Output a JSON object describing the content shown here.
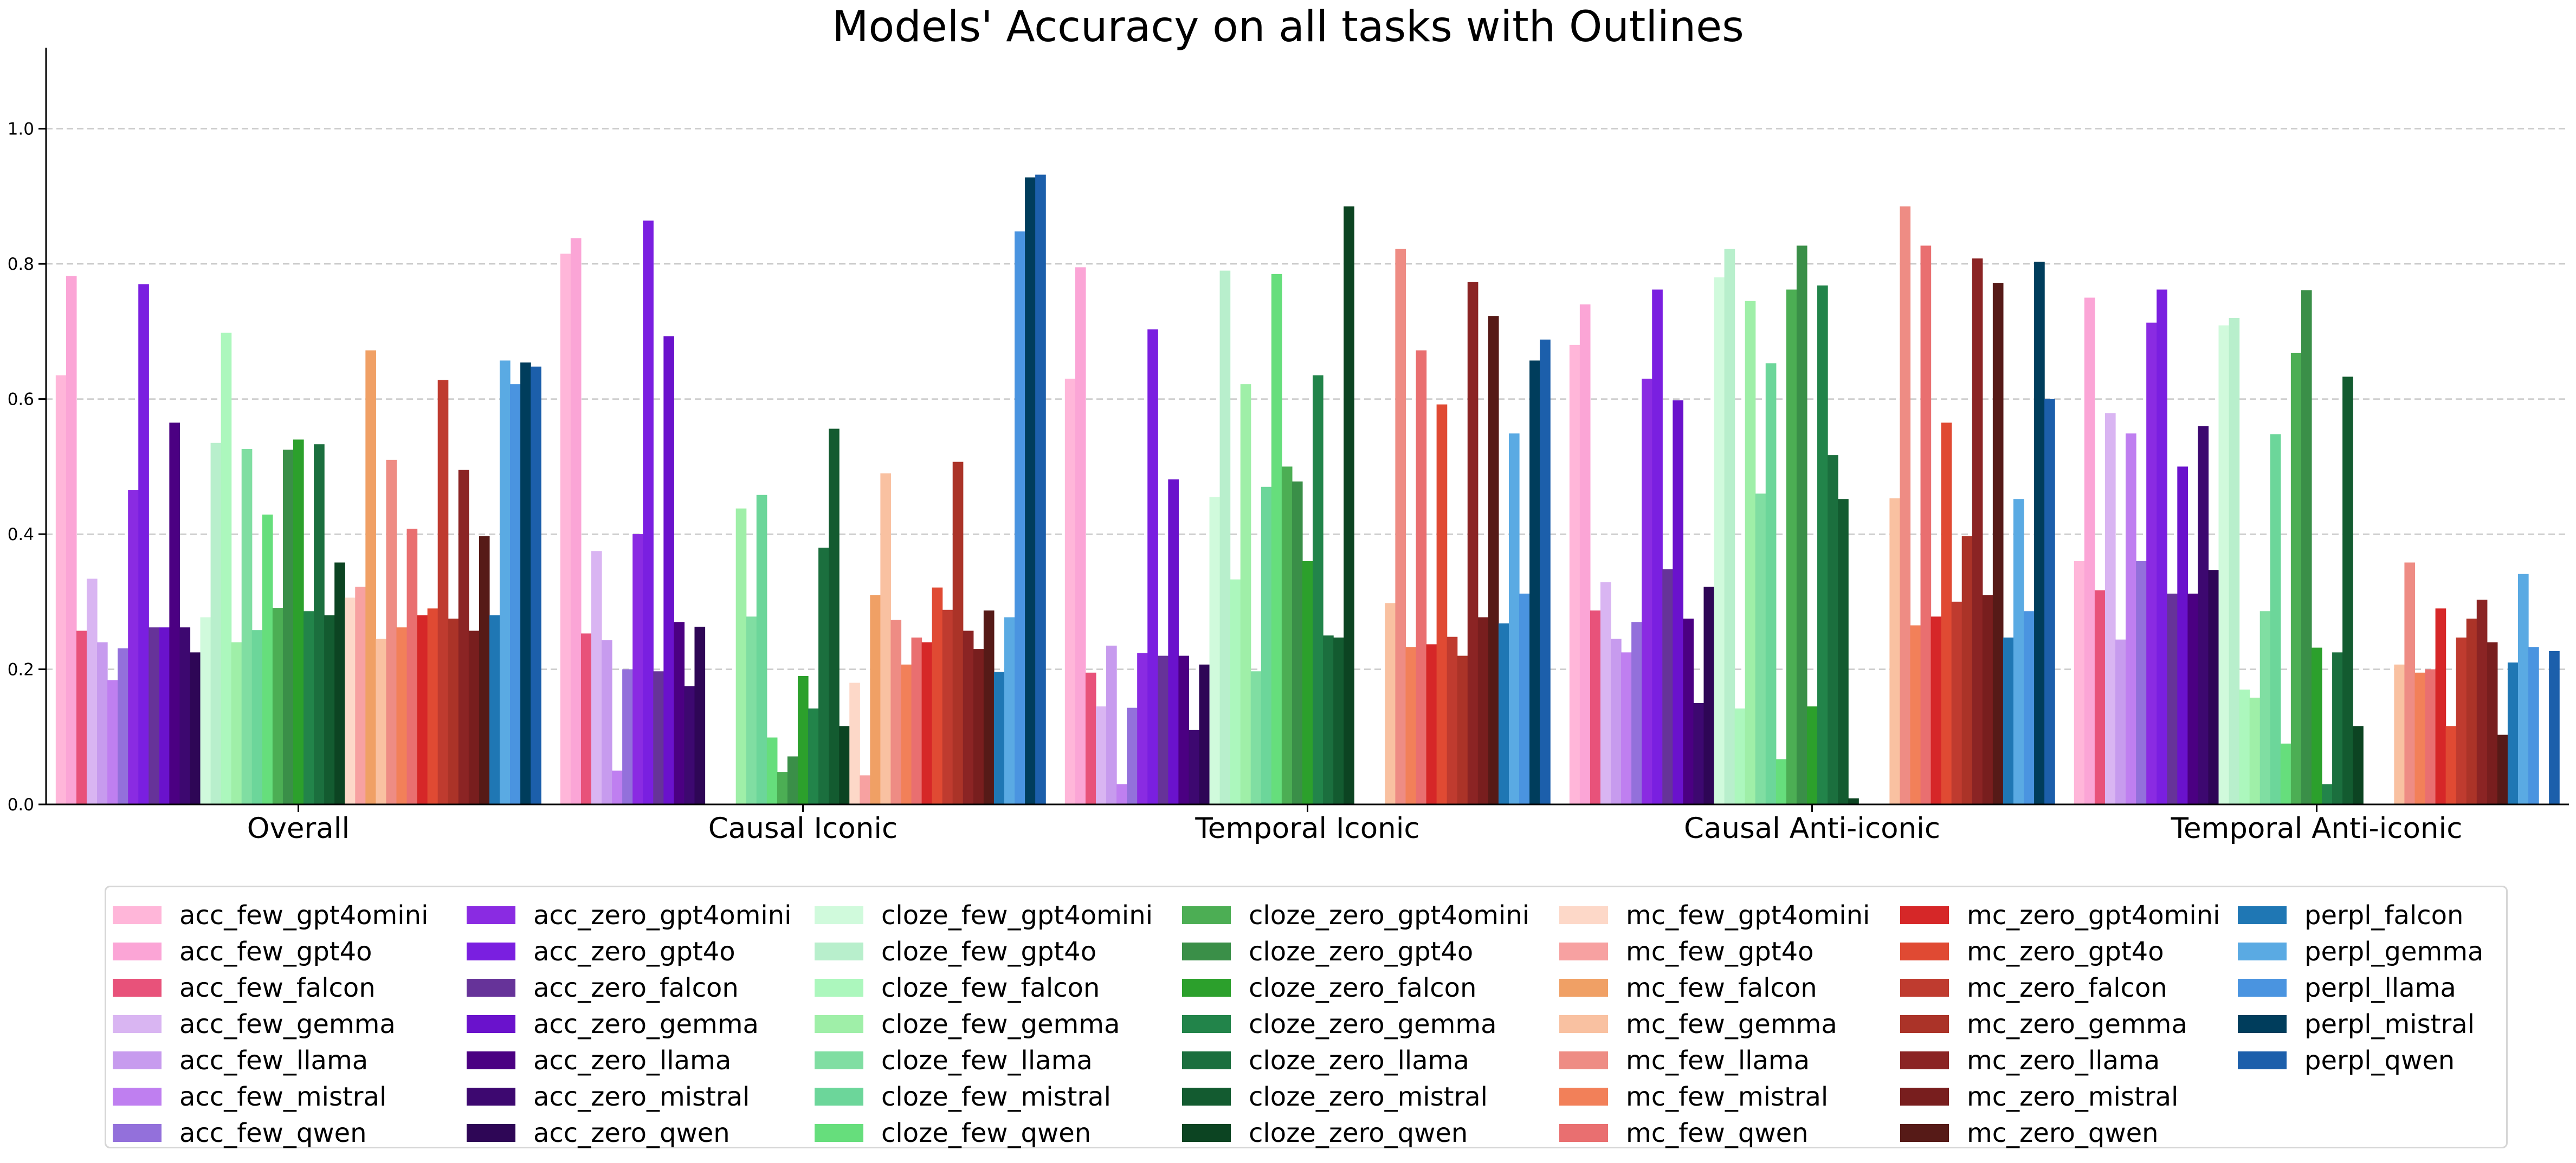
{
  "chart_data": {
    "type": "bar",
    "title": "Models' Accuracy on all tasks with Outlines",
    "xlabel": "",
    "ylabel": "",
    "ylim": [
      0,
      1.12
    ],
    "yticks": [
      0.0,
      0.2,
      0.4,
      0.6,
      0.8,
      1.0
    ],
    "ytick_labels": [
      "0.0",
      "0.2",
      "0.4",
      "0.6",
      "0.8",
      "1.0"
    ],
    "grid": true,
    "legend_position": "bottom",
    "categories": [
      "Overall",
      "Causal Iconic",
      "Temporal Iconic",
      "Causal Anti-iconic",
      "Temporal Anti-iconic"
    ],
    "series": [
      {
        "name": "acc_few_gpt4omini",
        "color": "#ffb6d9",
        "values": [
          0.635,
          0.815,
          0.63,
          0.68,
          0.36
        ]
      },
      {
        "name": "acc_few_gpt4o",
        "color": "#fba5d6",
        "values": [
          0.782,
          0.838,
          0.795,
          0.74,
          0.75
        ]
      },
      {
        "name": "acc_few_falcon",
        "color": "#e8527a",
        "values": [
          0.257,
          0.253,
          0.195,
          0.287,
          0.317
        ]
      },
      {
        "name": "acc_few_gemma",
        "color": "#d9b5f2",
        "values": [
          0.334,
          0.375,
          0.145,
          0.329,
          0.579
        ]
      },
      {
        "name": "acc_few_llama",
        "color": "#c79bee",
        "values": [
          0.24,
          0.243,
          0.235,
          0.245,
          0.244
        ]
      },
      {
        "name": "acc_few_mistral",
        "color": "#bf7ff0",
        "values": [
          0.184,
          0.05,
          0.03,
          0.225,
          0.549
        ]
      },
      {
        "name": "acc_few_qwen",
        "color": "#9370db",
        "values": [
          0.231,
          0.2,
          0.143,
          0.27,
          0.36
        ]
      },
      {
        "name": "acc_zero_gpt4omini",
        "color": "#8a2be2",
        "values": [
          0.465,
          0.4,
          0.224,
          0.63,
          0.713
        ]
      },
      {
        "name": "acc_zero_gpt4o",
        "color": "#7a1fe0",
        "values": [
          0.77,
          0.864,
          0.703,
          0.762,
          0.762
        ]
      },
      {
        "name": "acc_zero_falcon",
        "color": "#663399",
        "values": [
          0.262,
          0.197,
          0.22,
          0.348,
          0.312
        ]
      },
      {
        "name": "acc_zero_gemma",
        "color": "#6a12cc",
        "values": [
          0.262,
          0.693,
          0.481,
          0.598,
          0.5
        ]
      },
      {
        "name": "acc_zero_llama",
        "color": "#4b0082",
        "values": [
          0.565,
          0.27,
          0.22,
          0.275,
          0.312
        ]
      },
      {
        "name": "acc_zero_mistral",
        "color": "#3d0870",
        "values": [
          0.262,
          0.175,
          0.11,
          0.15,
          0.56
        ]
      },
      {
        "name": "acc_zero_qwen",
        "color": "#2e0656",
        "values": [
          0.225,
          0.263,
          0.207,
          0.322,
          0.347
        ]
      },
      {
        "name": "cloze_few_gpt4omini",
        "color": "#d0fadc",
        "values": [
          0.277,
          0.0,
          0.455,
          0.78,
          0.709
        ]
      },
      {
        "name": "cloze_few_gpt4o",
        "color": "#b8efcc",
        "values": [
          0.535,
          0.0,
          0.79,
          0.822,
          0.72
        ]
      },
      {
        "name": "cloze_few_falcon",
        "color": "#acf7bd",
        "values": [
          0.698,
          0.0,
          0.333,
          0.142,
          0.17
        ]
      },
      {
        "name": "cloze_few_gemma",
        "color": "#9fefa8",
        "values": [
          0.24,
          0.438,
          0.622,
          0.745,
          0.158
        ]
      },
      {
        "name": "cloze_few_llama",
        "color": "#80dea2",
        "values": [
          0.526,
          0.278,
          0.197,
          0.46,
          0.286
        ]
      },
      {
        "name": "cloze_few_mistral",
        "color": "#6cd69a",
        "values": [
          0.258,
          0.458,
          0.47,
          0.653,
          0.548
        ]
      },
      {
        "name": "cloze_few_qwen",
        "color": "#66de7c",
        "values": [
          0.429,
          0.099,
          0.785,
          0.067,
          0.09
        ]
      },
      {
        "name": "cloze_zero_gpt4omini",
        "color": "#4cae54",
        "values": [
          0.291,
          0.048,
          0.5,
          0.762,
          0.668
        ]
      },
      {
        "name": "cloze_zero_gpt4o",
        "color": "#3a8f48",
        "values": [
          0.525,
          0.071,
          0.478,
          0.827,
          0.761
        ]
      },
      {
        "name": "cloze_zero_falcon",
        "color": "#2ca02c",
        "values": [
          0.54,
          0.19,
          0.36,
          0.145,
          0.232
        ]
      },
      {
        "name": "cloze_zero_gemma",
        "color": "#22844a",
        "values": [
          0.286,
          0.142,
          0.635,
          0.768,
          0.03
        ]
      },
      {
        "name": "cloze_zero_llama",
        "color": "#1b6f3e",
        "values": [
          0.533,
          0.38,
          0.25,
          0.517,
          0.225
        ]
      },
      {
        "name": "cloze_zero_mistral",
        "color": "#135b30",
        "values": [
          0.28,
          0.556,
          0.247,
          0.452,
          0.633
        ]
      },
      {
        "name": "cloze_zero_qwen",
        "color": "#0c4422",
        "values": [
          0.358,
          0.116,
          0.885,
          0.009,
          0.116
        ]
      },
      {
        "name": "mc_few_gpt4omini",
        "color": "#fdd8c8",
        "values": [
          0.306,
          0.18,
          0.0,
          0.0,
          0.0
        ]
      },
      {
        "name": "mc_few_gpt4o",
        "color": "#f7a1a1",
        "values": [
          0.322,
          0.043,
          0.0,
          0.0,
          0.0
        ]
      },
      {
        "name": "mc_few_falcon",
        "color": "#f0a065",
        "values": [
          0.672,
          0.31,
          0.0,
          0.0,
          0.0
        ]
      },
      {
        "name": "mc_few_gemma",
        "color": "#f9c1a1",
        "values": [
          0.245,
          0.49,
          0.298,
          0.453,
          0.207
        ]
      },
      {
        "name": "mc_few_llama",
        "color": "#ee8c84",
        "values": [
          0.51,
          0.273,
          0.822,
          0.885,
          0.358
        ]
      },
      {
        "name": "mc_few_mistral",
        "color": "#f28059",
        "values": [
          0.262,
          0.207,
          0.233,
          0.265,
          0.195
        ]
      },
      {
        "name": "mc_few_qwen",
        "color": "#e96f70",
        "values": [
          0.408,
          0.247,
          0.672,
          0.827,
          0.2
        ]
      },
      {
        "name": "mc_zero_gpt4omini",
        "color": "#d62728",
        "values": [
          0.28,
          0.24,
          0.237,
          0.278,
          0.29
        ]
      },
      {
        "name": "mc_zero_gpt4o",
        "color": "#e04a33",
        "values": [
          0.29,
          0.321,
          0.592,
          0.565,
          0.116
        ]
      },
      {
        "name": "mc_zero_falcon",
        "color": "#bf3b2f",
        "values": [
          0.628,
          0.288,
          0.248,
          0.3,
          0.247
        ]
      },
      {
        "name": "mc_zero_gemma",
        "color": "#ab3328",
        "values": [
          0.275,
          0.507,
          0.22,
          0.397,
          0.275
        ]
      },
      {
        "name": "mc_zero_llama",
        "color": "#8b2424",
        "values": [
          0.495,
          0.257,
          0.773,
          0.808,
          0.303
        ]
      },
      {
        "name": "mc_zero_mistral",
        "color": "#781e1e",
        "values": [
          0.257,
          0.23,
          0.277,
          0.31,
          0.24
        ]
      },
      {
        "name": "mc_zero_qwen",
        "color": "#561a17",
        "values": [
          0.397,
          0.287,
          0.723,
          0.772,
          0.103
        ]
      },
      {
        "name": "perpl_falcon",
        "color": "#1f77b4",
        "values": [
          0.28,
          0.196,
          0.268,
          0.247,
          0.21
        ]
      },
      {
        "name": "perpl_gemma",
        "color": "#5aaae3",
        "values": [
          0.657,
          0.277,
          0.549,
          0.452,
          0.341
        ]
      },
      {
        "name": "perpl_llama",
        "color": "#4a94e0",
        "values": [
          0.622,
          0.848,
          0.312,
          0.286,
          0.233
        ]
      },
      {
        "name": "perpl_mistral",
        "color": "#003d5c",
        "values": [
          0.654,
          0.928,
          0.657,
          0.803,
          0.0
        ]
      },
      {
        "name": "perpl_qwen",
        "color": "#1c5fab",
        "values": [
          0.648,
          0.932,
          0.688,
          0.6,
          0.227
        ]
      }
    ]
  }
}
